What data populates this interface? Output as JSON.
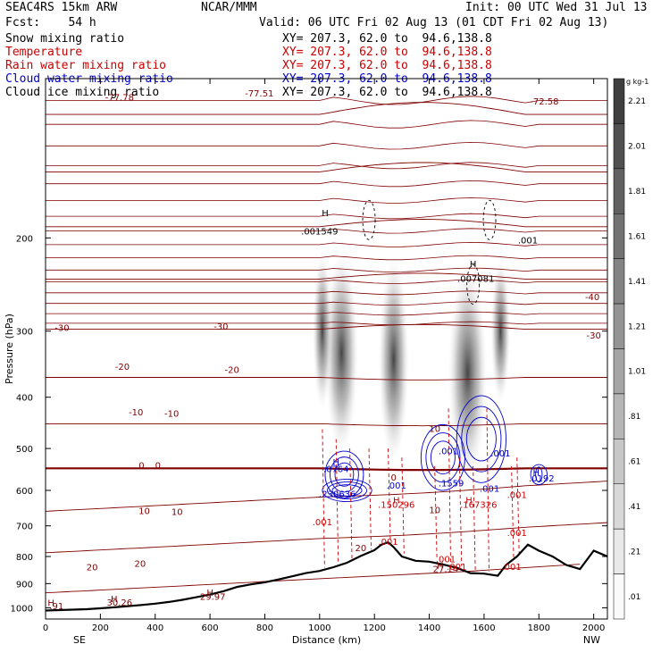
{
  "header": {
    "run": "SEAC4RS 15km ARW",
    "org": "NCAR/MMM",
    "init": "Init: 00 UTC Wed 31 Jul 13",
    "fcst": "Fcst:    54 h",
    "valid": "Valid: 06 UTC Fri 02 Aug 13 (01 CDT Fri 02 Aug 13)",
    "fields": [
      {
        "name": "Snow mixing ratio",
        "xy": "XY= 207.3, 62.0 to  94.6,138.8",
        "color": "#000000"
      },
      {
        "name": "Temperature",
        "xy": "XY= 207.3, 62.0 to  94.6,138.8",
        "color": "#cc0000"
      },
      {
        "name": "Rain water mixing ratio",
        "xy": "XY= 207.3, 62.0 to  94.6,138.8",
        "color": "#cc0000"
      },
      {
        "name": "Cloud water mixing ratio",
        "xy": "XY= 207.3, 62.0 to  94.6,138.8",
        "color": "#0000cc"
      },
      {
        "name": "Cloud ice mixing ratio",
        "xy": "XY= 207.3, 62.0 to  94.6,138.8",
        "color": "#000000"
      }
    ]
  },
  "chart_data": {
    "type": "cross-section",
    "xlabel": "Distance (km)",
    "ylabel": "Pressure (hPa)",
    "xlim": [
      0,
      2050
    ],
    "ylim": [
      1050,
      100
    ],
    "xticks": [
      0,
      200,
      400,
      600,
      800,
      1000,
      1200,
      1400,
      1600,
      1800,
      2000
    ],
    "yticks": [
      200,
      300,
      400,
      500,
      600,
      700,
      800,
      900,
      1000
    ],
    "left_end_label": "SE",
    "right_end_label": "NW",
    "colorbar": {
      "unit": "g kg-1",
      "levels": [
        ".01",
        ".21",
        ".41",
        ".61",
        ".81",
        "1.01",
        "1.21",
        "1.41",
        "1.61",
        "1.81",
        "2.01",
        "2.21"
      ],
      "shading": "snow mixing ratio"
    },
    "temperature_isotherms": [
      -70,
      -60,
      -50,
      -40,
      -30,
      -20,
      -10,
      0,
      10,
      20,
      30
    ],
    "terrain_surface_pressure": [
      [
        0,
        1012
      ],
      [
        50,
        1010
      ],
      [
        100,
        1008
      ],
      [
        150,
        1006
      ],
      [
        200,
        1002
      ],
      [
        250,
        998
      ],
      [
        300,
        993
      ],
      [
        350,
        988
      ],
      [
        400,
        982
      ],
      [
        450,
        975
      ],
      [
        500,
        966
      ],
      [
        550,
        955
      ],
      [
        600,
        944
      ],
      [
        650,
        930
      ],
      [
        700,
        913
      ],
      [
        750,
        903
      ],
      [
        800,
        895
      ],
      [
        850,
        884
      ],
      [
        900,
        872
      ],
      [
        950,
        860
      ],
      [
        1000,
        852
      ],
      [
        1050,
        838
      ],
      [
        1100,
        822
      ],
      [
        1150,
        798
      ],
      [
        1200,
        778
      ],
      [
        1225,
        760
      ],
      [
        1250,
        752
      ],
      [
        1270,
        768
      ],
      [
        1300,
        800
      ],
      [
        1350,
        815
      ],
      [
        1400,
        818
      ],
      [
        1450,
        828
      ],
      [
        1500,
        840
      ],
      [
        1550,
        860
      ],
      [
        1600,
        862
      ],
      [
        1650,
        870
      ],
      [
        1680,
        830
      ],
      [
        1720,
        800
      ],
      [
        1760,
        760
      ],
      [
        1800,
        780
      ],
      [
        1850,
        800
      ],
      [
        1900,
        830
      ],
      [
        1950,
        845
      ],
      [
        2000,
        780
      ],
      [
        2050,
        800
      ]
    ],
    "annotations": [
      {
        "text": "-77.78",
        "x": 270,
        "p": 110,
        "color": "#800000"
      },
      {
        "text": "-77.51",
        "x": 780,
        "p": 108,
        "color": "#800000"
      },
      {
        "text": "-72.58",
        "x": 1820,
        "p": 112,
        "color": "#800000"
      },
      {
        "text": "-40",
        "x": 1995,
        "p": 262,
        "color": "#800000"
      },
      {
        "text": "-30",
        "x": 2000,
        "p": 310,
        "color": "#800000"
      },
      {
        "text": "-30",
        "x": 60,
        "p": 300,
        "color": "#800000"
      },
      {
        "text": "-30",
        "x": 640,
        "p": 298,
        "color": "#800000"
      },
      {
        "text": "-20",
        "x": 280,
        "p": 355,
        "color": "#800000"
      },
      {
        "text": "-20",
        "x": 680,
        "p": 360,
        "color": "#800000"
      },
      {
        "text": "-10",
        "x": 330,
        "p": 433,
        "color": "#800000"
      },
      {
        "text": "-10",
        "x": 460,
        "p": 435,
        "color": "#800000"
      },
      {
        "text": "0",
        "x": 350,
        "p": 545,
        "color": "#800000"
      },
      {
        "text": "0",
        "x": 410,
        "p": 545,
        "color": "#800000"
      },
      {
        "text": "10",
        "x": 360,
        "p": 665,
        "color": "#800000"
      },
      {
        "text": "10",
        "x": 480,
        "p": 668,
        "color": "#800000"
      },
      {
        "text": "10",
        "x": 1420,
        "p": 465,
        "color": "#800000"
      },
      {
        "text": "10",
        "x": 1420,
        "p": 662,
        "color": "#800000"
      },
      {
        "text": "20",
        "x": 170,
        "p": 850,
        "color": "#800000"
      },
      {
        "text": "20",
        "x": 345,
        "p": 837,
        "color": "#800000"
      },
      {
        "text": "20",
        "x": 1150,
        "p": 782,
        "color": "#800000"
      },
      {
        "text": "0",
        "x": 1270,
        "p": 575,
        "color": "#800000"
      },
      {
        "text": "H",
        "x": 250,
        "p": 975,
        "color": "#800000"
      },
      {
        "text": "30.26",
        "x": 270,
        "p": 990,
        "color": "#800000"
      },
      {
        "text": "H",
        "x": 600,
        "p": 950,
        "color": "#800000"
      },
      {
        "text": "29.97",
        "x": 610,
        "p": 965,
        "color": "#800000"
      },
      {
        "text": "H",
        "x": 20,
        "p": 992,
        "color": "#800000"
      },
      {
        "text": ".91",
        "x": 40,
        "p": 1007,
        "color": "#800000"
      },
      {
        "text": "H",
        "x": 1440,
        "p": 843,
        "color": "#800000"
      },
      {
        "text": "27.14",
        "x": 1460,
        "p": 857,
        "color": "#800000"
      },
      {
        "text": ".0764",
        "x": 1060,
        "p": 554,
        "color": "#0000cc"
      },
      {
        "text": ".001",
        "x": 1470,
        "p": 513,
        "color": "#0000cc"
      },
      {
        "text": ".001",
        "x": 1660,
        "p": 518,
        "color": "#0000cc"
      },
      {
        "text": ".001",
        "x": 1280,
        "p": 595,
        "color": "#0000cc"
      },
      {
        "text": ".1559",
        "x": 1480,
        "p": 590,
        "color": "#0000cc"
      },
      {
        "text": ".001",
        "x": 1620,
        "p": 603,
        "color": "#0000cc"
      },
      {
        "text": "H",
        "x": 1790,
        "p": 563,
        "color": "#0000cc"
      },
      {
        "text": ".0192",
        "x": 1810,
        "p": 577,
        "color": "#0000cc"
      },
      {
        "text": ".230636",
        "x": 1065,
        "p": 618,
        "color": "#0000cc"
      },
      {
        "text": "H",
        "x": 1060,
        "p": 538,
        "color": "#0000cc"
      },
      {
        "text": ".150296",
        "x": 1280,
        "p": 647,
        "color": "#cc0000"
      },
      {
        "text": ".167326",
        "x": 1580,
        "p": 647,
        "color": "#cc0000"
      },
      {
        "text": "H",
        "x": 1280,
        "p": 635,
        "color": "#cc0000"
      },
      {
        "text": "H",
        "x": 1545,
        "p": 635,
        "color": "#cc0000"
      },
      {
        "text": ".001",
        "x": 1010,
        "p": 698,
        "color": "#cc0000"
      },
      {
        "text": ".001",
        "x": 1250,
        "p": 760,
        "color": "#cc0000"
      },
      {
        "text": ".001",
        "x": 1460,
        "p": 820,
        "color": "#cc0000"
      },
      {
        "text": ".001",
        "x": 1500,
        "p": 848,
        "color": "#cc0000"
      },
      {
        "text": ".001",
        "x": 1700,
        "p": 848,
        "color": "#cc0000"
      },
      {
        "text": ".001",
        "x": 1720,
        "p": 732,
        "color": "#cc0000"
      },
      {
        "text": ".001",
        "x": 1720,
        "p": 620,
        "color": "#cc0000"
      },
      {
        "text": "H",
        "x": 1020,
        "p": 182,
        "color": "#000000"
      },
      {
        "text": ".001549",
        "x": 1000,
        "p": 197,
        "color": "#000000"
      },
      {
        "text": "H",
        "x": 1560,
        "p": 227,
        "color": "#000000"
      },
      {
        "text": ".007081",
        "x": 1570,
        "p": 242,
        "color": "#000000"
      },
      {
        "text": ".001",
        "x": 1760,
        "p": 205,
        "color": "#000000"
      }
    ]
  }
}
